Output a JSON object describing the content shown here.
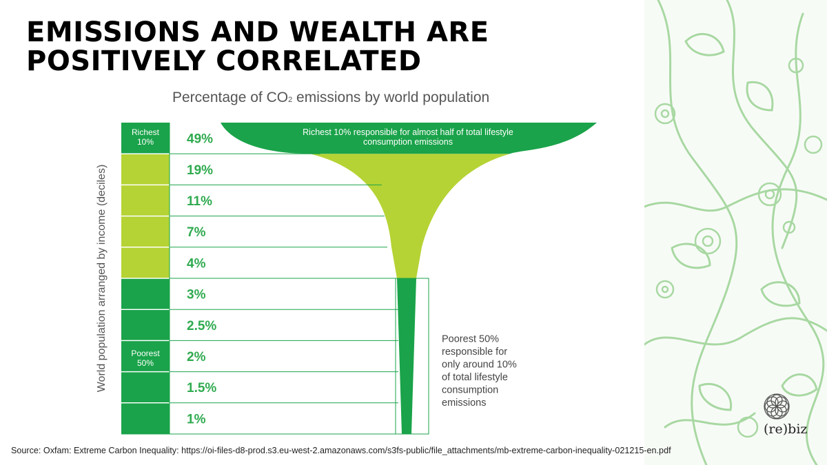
{
  "slide": {
    "title": "EMISSIONS AND WEALTH ARE POSITIVELY CORRELATED",
    "source": "Source: Oxfam: Extreme Carbon Inequality: https://oi-files-d8-prod.s3.eu-west-2.amazonaws.com/s3fs-public/file_attachments/mb-extreme-carbon-inequality-021215-en.pdf",
    "logo_text": "(re)biz"
  },
  "colors": {
    "dark_green": "#1aa34a",
    "light_green": "#b5d334",
    "value_green": "#2faa4f",
    "decor_green": "#9fd39a"
  },
  "chart_data": {
    "type": "bar",
    "title_prefix": "Percentage of CO",
    "title_sub": "2",
    "title_suffix": " emissions by world population",
    "ylabel": "World population arranged by income (deciles)",
    "categories": [
      "Richest 10%",
      "",
      "",
      "",
      "",
      "",
      "",
      "",
      "",
      "Poorest"
    ],
    "values": [
      49,
      19,
      11,
      7,
      4,
      3,
      2.5,
      2,
      1.5,
      1
    ],
    "value_labels": [
      "49%",
      "19%",
      "11%",
      "7%",
      "4%",
      "3%",
      "2.5%",
      "2%",
      "1.5%",
      "1%"
    ],
    "group_labels": {
      "richest": [
        "Richest",
        "10%"
      ],
      "poorest": [
        "Poorest",
        "50%"
      ]
    },
    "annotations": {
      "richest": [
        "Richest 10% responsible for almost half of total lifestyle",
        "consumption emissions"
      ],
      "poorest": [
        "Poorest 50%",
        "responsible for",
        "only around 10%",
        "of total lifestyle",
        "consumption",
        "emissions"
      ]
    }
  }
}
